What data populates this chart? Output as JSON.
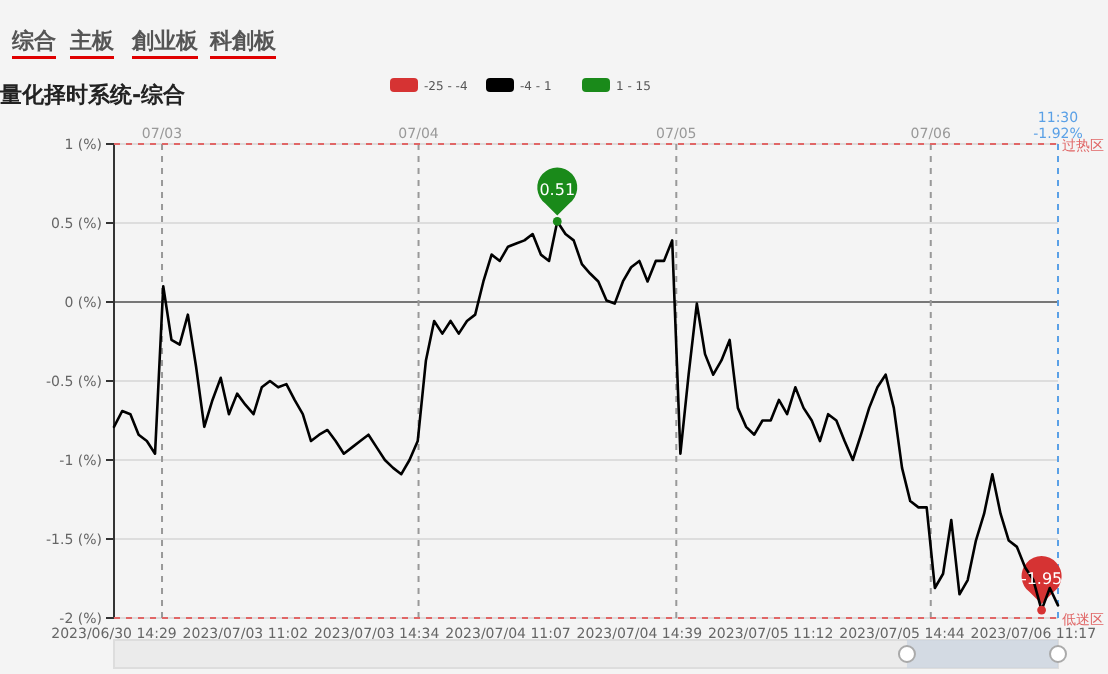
{
  "chart_data": {
    "type": "line",
    "title": "量化择时系统-综合",
    "annotations": [
      "综合",
      "主板",
      "創业板",
      "科創板",
      "07/03",
      "07/04",
      "07/05",
      "07/06",
      "11:30\n-1.92%"
    ],
    "categories": [
      "2023/06/30 14:29",
      null,
      null,
      null,
      null,
      null,
      null,
      null,
      null,
      null,
      null,
      null,
      null,
      null,
      null,
      null,
      "2023/07/03 11:02",
      null,
      null,
      null,
      null,
      null,
      null,
      null,
      null,
      null,
      null,
      null,
      null,
      null,
      null,
      null,
      "2023/07/03 14:34",
      null,
      null,
      null,
      null,
      null,
      null,
      null,
      null,
      null,
      null,
      null,
      null,
      null,
      null,
      null,
      "2023/07/04 11:07",
      null,
      null,
      null,
      null,
      null,
      null,
      null,
      null,
      null,
      null,
      null,
      null,
      null,
      null,
      null,
      "2023/07/04 14:39",
      null,
      null,
      null,
      null,
      null,
      null,
      null,
      null,
      null,
      null,
      null,
      null,
      null,
      null,
      null,
      "2023/07/05 11:12",
      null,
      null,
      null,
      null,
      null,
      null,
      null,
      null,
      null,
      null,
      null,
      null,
      null,
      null,
      null,
      "2023/07/05 14:44",
      null,
      null,
      null,
      null,
      null,
      null,
      null,
      null,
      null,
      null,
      null,
      null,
      null,
      null,
      null,
      "2023/07/06 11:17",
      null,
      null,
      null
    ],
    "series": [
      {
        "name": "-25 - -4",
        "color": "#d63333",
        "type": "scatter",
        "marker": "circle",
        "values": [
          null,
          null,
          null,
          null,
          null,
          null,
          null,
          null,
          null,
          null,
          null,
          null,
          null,
          null,
          null,
          null,
          null,
          null,
          null,
          null,
          null,
          null,
          null,
          null,
          null,
          null,
          null,
          null,
          null,
          null,
          null,
          null,
          null,
          null,
          null,
          null,
          null,
          null,
          null,
          null,
          null,
          null,
          null,
          null,
          null,
          null,
          null,
          null,
          null,
          null,
          null,
          null,
          null,
          null,
          null,
          null,
          null,
          null,
          null,
          null,
          null,
          null,
          null,
          null,
          null,
          null,
          null,
          null,
          null,
          null,
          null,
          null,
          null,
          null,
          null,
          null,
          null,
          null,
          null,
          null,
          null,
          null,
          null,
          null,
          null,
          null,
          null,
          null,
          null,
          null,
          null,
          null,
          null,
          null,
          null,
          null,
          null,
          null,
          null,
          null,
          null,
          null,
          null,
          null,
          null,
          null,
          null,
          null,
          null,
          null,
          null,
          null,
          null,
          -1.95,
          null,
          null
        ],
        "value_labels": [
          null,
          null,
          null,
          null,
          null,
          null,
          null,
          null,
          null,
          null,
          null,
          null,
          null,
          null,
          null,
          null,
          null,
          null,
          null,
          null,
          null,
          null,
          null,
          null,
          null,
          null,
          null,
          null,
          null,
          null,
          null,
          null,
          null,
          null,
          null,
          null,
          null,
          null,
          null,
          null,
          null,
          null,
          null,
          null,
          null,
          null,
          null,
          null,
          null,
          null,
          null,
          null,
          null,
          null,
          null,
          null,
          null,
          null,
          null,
          null,
          null,
          null,
          null,
          null,
          null,
          null,
          null,
          null,
          null,
          null,
          null,
          null,
          null,
          null,
          null,
          null,
          null,
          null,
          null,
          null,
          null,
          null,
          null,
          null,
          null,
          null,
          null,
          null,
          null,
          null,
          null,
          null,
          null,
          null,
          null,
          null,
          null,
          null,
          null,
          null,
          null,
          null,
          null,
          null,
          null,
          null,
          null,
          null,
          null,
          null,
          null,
          null,
          null,
          "-1.95",
          null,
          null
        ]
      },
      {
        "name": "-4 - 1",
        "color": "#000000",
        "values": [
          -0.79,
          -0.69,
          -0.71,
          -0.84,
          -0.88,
          -0.96,
          0.1,
          -0.24,
          -0.27,
          -0.08,
          -0.41,
          -0.79,
          -0.62,
          -0.48,
          -0.71,
          -0.58,
          -0.65,
          -0.71,
          -0.54,
          -0.5,
          -0.54,
          -0.52,
          -0.62,
          -0.71,
          -0.88,
          -0.84,
          -0.81,
          -0.88,
          -0.96,
          -0.92,
          -0.88,
          -0.84,
          -0.92,
          -1.0,
          -1.05,
          -1.09,
          -1.0,
          -0.88,
          -0.37,
          -0.12,
          -0.2,
          -0.12,
          -0.2,
          -0.12,
          -0.08,
          0.13,
          0.3,
          0.26,
          0.35,
          0.37,
          0.39,
          0.43,
          0.3,
          0.26,
          0.51,
          0.43,
          0.39,
          0.24,
          0.18,
          0.13,
          0.01,
          -0.01,
          0.13,
          0.22,
          0.26,
          0.13,
          0.26,
          0.26,
          0.39,
          -0.96,
          -0.46,
          -0.01,
          -0.33,
          -0.46,
          -0.37,
          -0.24,
          -0.67,
          -0.79,
          -0.84,
          -0.75,
          -0.75,
          -0.62,
          -0.71,
          -0.54,
          -0.67,
          -0.75,
          -0.88,
          -0.71,
          -0.75,
          -0.88,
          -1.0,
          -0.84,
          -0.67,
          -0.54,
          -0.46,
          -0.67,
          -1.05,
          -1.26,
          -1.3,
          -1.3,
          -1.81,
          -1.72,
          -1.38,
          -1.85,
          -1.76,
          -1.51,
          -1.34,
          -1.09,
          -1.34,
          -1.51,
          -1.55,
          -1.68,
          -1.76,
          -1.95,
          -1.81,
          -1.92
        ]
      },
      {
        "name": "1 - 15",
        "color": "#1a8a1a",
        "type": "scatter",
        "marker": "circle",
        "values": [
          null,
          null,
          null,
          null,
          null,
          null,
          null,
          null,
          null,
          null,
          null,
          null,
          null,
          null,
          null,
          null,
          null,
          null,
          null,
          null,
          null,
          null,
          null,
          null,
          null,
          null,
          null,
          null,
          null,
          null,
          null,
          null,
          null,
          null,
          null,
          null,
          null,
          null,
          null,
          null,
          null,
          null,
          null,
          null,
          null,
          null,
          null,
          null,
          null,
          null,
          null,
          null,
          null,
          null,
          0.51,
          null,
          null,
          null,
          null,
          null,
          null,
          null,
          null,
          null,
          null,
          null,
          null,
          null,
          null,
          null,
          null,
          null,
          null,
          null,
          null,
          null,
          null,
          null,
          null,
          null,
          null,
          null,
          null,
          null,
          null,
          null,
          null,
          null,
          null,
          null,
          null,
          null,
          null,
          null,
          null,
          null,
          null,
          null,
          null,
          null,
          null,
          null,
          null,
          null,
          null,
          null,
          null,
          null,
          null,
          null,
          null,
          null,
          null,
          null,
          null,
          null
        ],
        "value_labels": [
          null,
          null,
          null,
          null,
          null,
          null,
          null,
          null,
          null,
          null,
          null,
          null,
          null,
          null,
          null,
          null,
          null,
          null,
          null,
          null,
          null,
          null,
          null,
          null,
          null,
          null,
          null,
          null,
          null,
          null,
          null,
          null,
          null,
          null,
          null,
          null,
          null,
          null,
          null,
          null,
          null,
          null,
          null,
          null,
          null,
          null,
          null,
          null,
          null,
          null,
          null,
          null,
          null,
          null,
          "0.51",
          null,
          null,
          null,
          null,
          null,
          null,
          null,
          null,
          null,
          null,
          null,
          null,
          null,
          null,
          null,
          null,
          null,
          null,
          null,
          null,
          null,
          null,
          null,
          null,
          null,
          null,
          null,
          null,
          null,
          null,
          null,
          null,
          null,
          null,
          null,
          null,
          null,
          null,
          null,
          null,
          null,
          null,
          null,
          null,
          null,
          null,
          null,
          null,
          null,
          null,
          null,
          null,
          null,
          null,
          null,
          null,
          null,
          null,
          null,
          null,
          null
        ]
      }
    ],
    "ylim": [
      -2,
      1
    ],
    "yticks": [
      {
        "value": -2,
        "label": "-2 (%)"
      },
      {
        "value": -1.5,
        "label": "-1.5 (%)"
      },
      {
        "value": -1,
        "label": "-1 (%)"
      },
      {
        "value": -0.5,
        "label": "-0.5 (%)"
      },
      {
        "value": 0,
        "label": "0 (%)"
      },
      {
        "value": 0.5,
        "label": "0.5 (%)"
      },
      {
        "value": 1,
        "label": "1 (%)"
      }
    ],
    "grid": "y",
    "legend": "top",
    "marker": "none",
    "line_style": "solid",
    "ref_lines": [
      {
        "axis": "y",
        "value": 1,
        "label": "过热区",
        "color": "#e06666",
        "line_style": "dashed"
      },
      {
        "axis": "y",
        "value": -2,
        "label": "低迷区",
        "color": "#e06666",
        "line_style": "dashed"
      }
    ]
  }
}
